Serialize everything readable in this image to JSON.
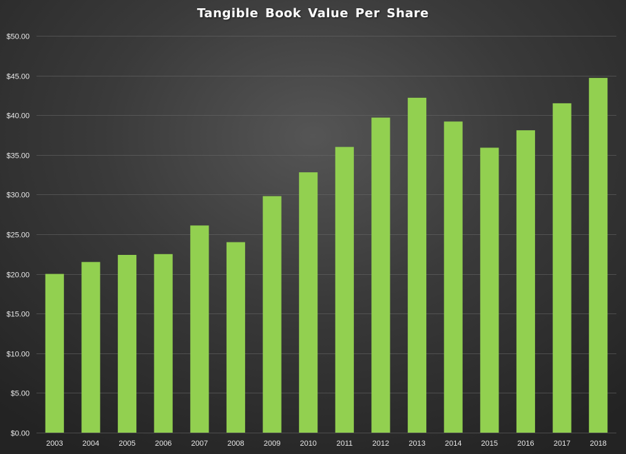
{
  "chart_data": {
    "type": "bar",
    "title": "Tangible  Book Value Per Share",
    "xlabel": "",
    "ylabel": "",
    "categories": [
      "2003",
      "2004",
      "2005",
      "2006",
      "2007",
      "2008",
      "2009",
      "2010",
      "2011",
      "2012",
      "2013",
      "2014",
      "2015",
      "2016",
      "2017",
      "2018"
    ],
    "values": [
      20.0,
      21.5,
      22.4,
      22.5,
      26.1,
      24.0,
      29.8,
      32.8,
      36.0,
      39.7,
      42.2,
      39.2,
      35.9,
      38.1,
      41.5,
      44.7
    ],
    "ylim": [
      0,
      50
    ],
    "yticks": [
      0,
      5,
      10,
      15,
      20,
      25,
      30,
      35,
      40,
      45,
      50
    ],
    "ytick_labels": [
      "$0.00",
      "$5.00",
      "$10.00",
      "$15.00",
      "$20.00",
      "$25.00",
      "$30.00",
      "$35.00",
      "$40.00",
      "$45.00",
      "$50.00"
    ],
    "grid": true,
    "legend": "none",
    "bar_color": "#92d050",
    "background_color": "#3a3a3a"
  }
}
